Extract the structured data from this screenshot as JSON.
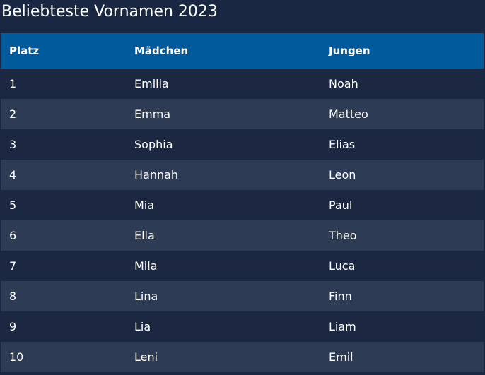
{
  "title": "Beliebteste Vornamen 2023",
  "colors": {
    "background": "#1a2742",
    "header": "#015a9c",
    "row_odd": "#1c2842",
    "row_even": "#2e3b54",
    "text": "#ffffff"
  },
  "table": {
    "headers": [
      "Platz",
      "Mädchen",
      "Jungen"
    ],
    "rows": [
      [
        "1",
        "Emilia",
        "Noah"
      ],
      [
        "2",
        "Emma",
        "Matteo"
      ],
      [
        "3",
        "Sophia",
        "Elias"
      ],
      [
        "4",
        "Hannah",
        "Leon"
      ],
      [
        "5",
        "Mia",
        "Paul"
      ],
      [
        "6",
        "Ella",
        "Theo"
      ],
      [
        "7",
        "Mila",
        "Luca"
      ],
      [
        "8",
        "Lina",
        "Finn"
      ],
      [
        "9",
        "Lia",
        "Liam"
      ],
      [
        "10",
        "Leni",
        "Emil"
      ]
    ]
  }
}
